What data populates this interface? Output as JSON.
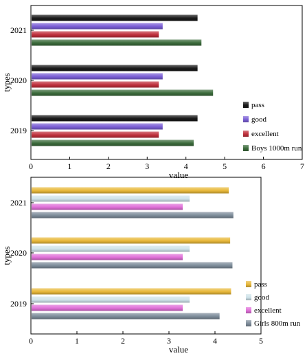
{
  "chart_data": [
    {
      "type": "bar",
      "orientation": "horizontal",
      "xlabel": "value",
      "ylabel": "types",
      "xlim": [
        0,
        7
      ],
      "xticks": [
        "0",
        "1",
        "2",
        "3",
        "4",
        "5",
        "6",
        "7"
      ],
      "categories": [
        "2019",
        "2020",
        "2021"
      ],
      "legend_position": "bottom-right",
      "grid": false,
      "series": [
        {
          "name": "pass",
          "values": [
            4.3,
            4.3,
            4.3
          ],
          "color": "#1a1a1a"
        },
        {
          "name": "good",
          "values": [
            3.4,
            3.4,
            3.4
          ],
          "color": "#7b5fd6"
        },
        {
          "name": "excellent",
          "values": [
            3.3,
            3.3,
            3.3
          ],
          "color": "#c0303c"
        },
        {
          "name": "Boys 1000m run",
          "values": [
            4.2,
            4.7,
            4.4
          ],
          "color": "#3b6b3b"
        }
      ]
    },
    {
      "type": "bar",
      "orientation": "horizontal",
      "xlabel": "value",
      "ylabel": "types",
      "xlim": [
        0,
        5
      ],
      "xticks": [
        "0",
        "1",
        "2",
        "3",
        "4",
        "5"
      ],
      "categories": [
        "2019",
        "2020",
        "2021"
      ],
      "legend_position": "bottom-right",
      "grid": false,
      "series": [
        {
          "name": "pass",
          "values": [
            4.35,
            4.33,
            4.3
          ],
          "color": "#e8b83a"
        },
        {
          "name": "good",
          "values": [
            3.45,
            3.45,
            3.45
          ],
          "color": "#cfe3ea"
        },
        {
          "name": "excellent",
          "values": [
            3.3,
            3.3,
            3.3
          ],
          "color": "#e070d8"
        },
        {
          "name": "Girls 800m run",
          "values": [
            4.1,
            4.38,
            4.4
          ],
          "color": "#7d8c9a"
        }
      ]
    }
  ]
}
